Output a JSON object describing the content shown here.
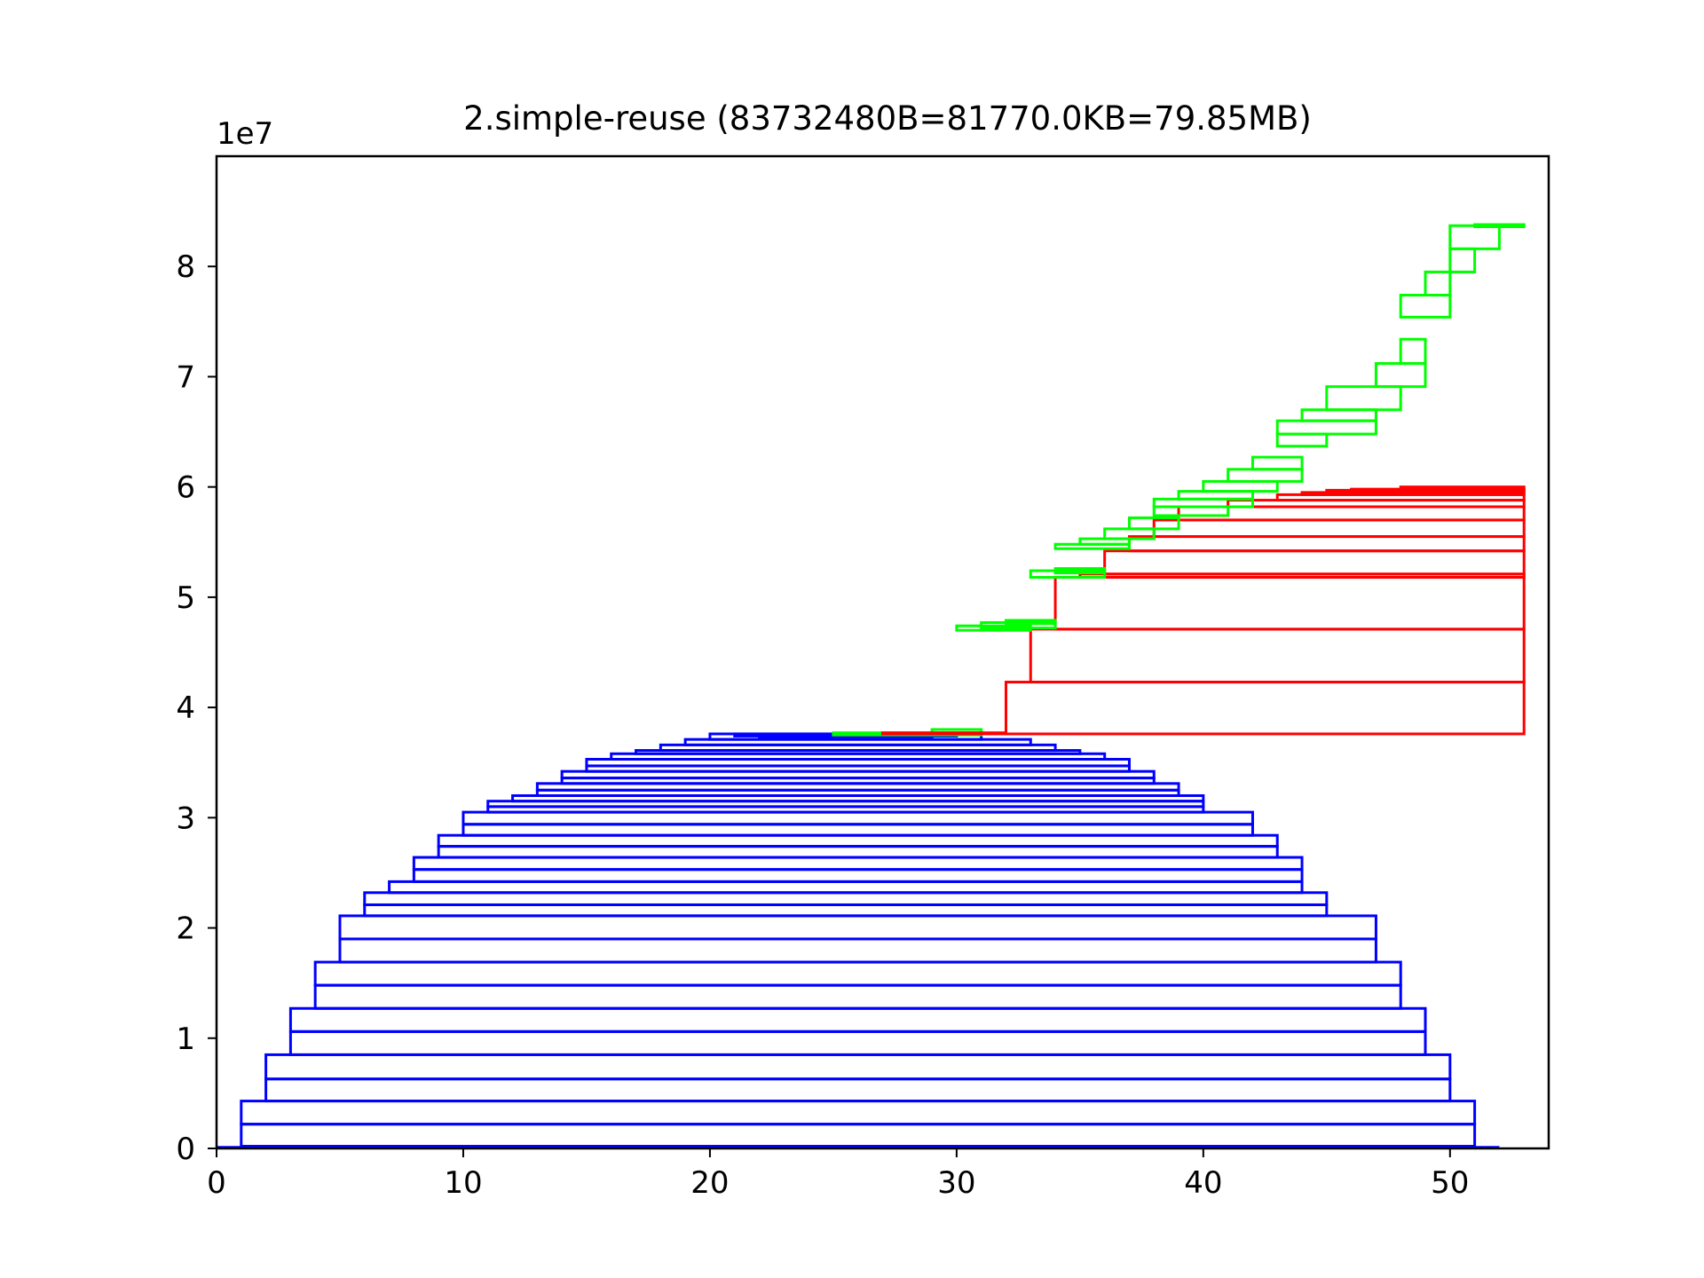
{
  "chart_data": {
    "type": "bar",
    "title": "2.simple-reuse (83732480B=81770.0KB=79.85MB)",
    "y_offset_label": "1e7",
    "xlabel": "",
    "ylabel": "",
    "xlim": [
      0,
      54
    ],
    "ylim": [
      0,
      9
    ],
    "x_ticks": [
      0,
      10,
      20,
      30,
      40,
      50
    ],
    "x_tick_labels": [
      "0",
      "10",
      "20",
      "30",
      "40",
      "50"
    ],
    "y_ticks": [
      0,
      1,
      2,
      3,
      4,
      5,
      6,
      7,
      8
    ],
    "y_tick_labels": [
      "0",
      "1",
      "2",
      "3",
      "4",
      "5",
      "6",
      "7",
      "8"
    ],
    "grid": false,
    "legend": "none",
    "colors": {
      "blue": "#0000ff",
      "red": "#ff0000",
      "green": "#00ff00"
    },
    "blocks": [
      {
        "series": "blue",
        "start": 1,
        "end": 51,
        "bottom": 0.22,
        "top": 0.43
      },
      {
        "series": "blue",
        "start": 1,
        "end": 51,
        "bottom": 0.02,
        "top": 0.22
      },
      {
        "series": "blue",
        "start": 2,
        "end": 50,
        "bottom": 0.63,
        "top": 0.85
      },
      {
        "series": "blue",
        "start": 2,
        "end": 50,
        "bottom": 0.43,
        "top": 0.63
      },
      {
        "series": "blue",
        "start": 3,
        "end": 49,
        "bottom": 1.06,
        "top": 1.27
      },
      {
        "series": "blue",
        "start": 3,
        "end": 49,
        "bottom": 0.85,
        "top": 1.06
      },
      {
        "series": "blue",
        "start": 4,
        "end": 48,
        "bottom": 1.48,
        "top": 1.69
      },
      {
        "series": "blue",
        "start": 4,
        "end": 48,
        "bottom": 1.27,
        "top": 1.48
      },
      {
        "series": "blue",
        "start": 5,
        "end": 47,
        "bottom": 1.9,
        "top": 2.11
      },
      {
        "series": "blue",
        "start": 5,
        "end": 47,
        "bottom": 1.69,
        "top": 1.9
      },
      {
        "series": "blue",
        "start": 6,
        "end": 45,
        "bottom": 2.21,
        "top": 2.32
      },
      {
        "series": "blue",
        "start": 6,
        "end": 45,
        "bottom": 2.11,
        "top": 2.21
      },
      {
        "series": "blue",
        "start": 7,
        "end": 44,
        "bottom": 2.32,
        "top": 2.42
      },
      {
        "series": "blue",
        "start": 8,
        "end": 44,
        "bottom": 2.53,
        "top": 2.64
      },
      {
        "series": "blue",
        "start": 8,
        "end": 44,
        "bottom": 2.42,
        "top": 2.53
      },
      {
        "series": "blue",
        "start": 9,
        "end": 43,
        "bottom": 2.74,
        "top": 2.84
      },
      {
        "series": "blue",
        "start": 9,
        "end": 43,
        "bottom": 2.64,
        "top": 2.74
      },
      {
        "series": "blue",
        "start": 10,
        "end": 42,
        "bottom": 2.94,
        "top": 3.05
      },
      {
        "series": "blue",
        "start": 10,
        "end": 42,
        "bottom": 2.84,
        "top": 2.94
      },
      {
        "series": "blue",
        "start": 11,
        "end": 40,
        "bottom": 3.1,
        "top": 3.15
      },
      {
        "series": "blue",
        "start": 11,
        "end": 40,
        "bottom": 3.05,
        "top": 3.1
      },
      {
        "series": "blue",
        "start": 12,
        "end": 40,
        "bottom": 3.15,
        "top": 3.2
      },
      {
        "series": "blue",
        "start": 13,
        "end": 39,
        "bottom": 3.25,
        "top": 3.31
      },
      {
        "series": "blue",
        "start": 13,
        "end": 39,
        "bottom": 3.2,
        "top": 3.25
      },
      {
        "series": "blue",
        "start": 14,
        "end": 38,
        "bottom": 3.36,
        "top": 3.42
      },
      {
        "series": "blue",
        "start": 14,
        "end": 38,
        "bottom": 3.31,
        "top": 3.36
      },
      {
        "series": "blue",
        "start": 15,
        "end": 37,
        "bottom": 3.47,
        "top": 3.53
      },
      {
        "series": "blue",
        "start": 15,
        "end": 37,
        "bottom": 3.42,
        "top": 3.47
      },
      {
        "series": "blue",
        "start": 16,
        "end": 36,
        "bottom": 3.53,
        "top": 3.58
      },
      {
        "series": "blue",
        "start": 17,
        "end": 35,
        "bottom": 3.58,
        "top": 3.61
      },
      {
        "series": "blue",
        "start": 18,
        "end": 34,
        "bottom": 3.61,
        "top": 3.66
      },
      {
        "series": "blue",
        "start": 19,
        "end": 33,
        "bottom": 3.66,
        "top": 3.71
      },
      {
        "series": "blue",
        "start": 20,
        "end": 31,
        "bottom": 3.71,
        "top": 3.76
      },
      {
        "series": "blue",
        "start": 21,
        "end": 30,
        "bottom": 3.74,
        "top": 3.76
      },
      {
        "series": "blue",
        "start": 22,
        "end": 29,
        "bottom": 3.72,
        "top": 3.75
      },
      {
        "series": "green",
        "start": 25,
        "end": 31,
        "bottom": 3.75,
        "top": 3.77
      },
      {
        "series": "green",
        "start": 29,
        "end": 31,
        "bottom": 3.77,
        "top": 3.8
      },
      {
        "series": "red",
        "start": 27,
        "end": 32,
        "bottom": 3.76,
        "top": 3.77
      },
      {
        "series": "red",
        "start": 32,
        "end": 53,
        "bottom": 3.76,
        "top": 4.23
      },
      {
        "series": "red",
        "start": 33,
        "end": 53,
        "bottom": 4.23,
        "top": 4.71
      },
      {
        "series": "red",
        "start": 34,
        "end": 53,
        "bottom": 4.71,
        "top": 5.18
      },
      {
        "series": "red",
        "start": 35,
        "end": 53,
        "bottom": 5.18,
        "top": 5.21
      },
      {
        "series": "red",
        "start": 36,
        "end": 53,
        "bottom": 5.21,
        "top": 5.42
      },
      {
        "series": "red",
        "start": 37,
        "end": 53,
        "bottom": 5.42,
        "top": 5.55
      },
      {
        "series": "red",
        "start": 38,
        "end": 53,
        "bottom": 5.55,
        "top": 5.7
      },
      {
        "series": "red",
        "start": 39,
        "end": 53,
        "bottom": 5.7,
        "top": 5.82
      },
      {
        "series": "red",
        "start": 41,
        "end": 53,
        "bottom": 5.82,
        "top": 5.88
      },
      {
        "series": "red",
        "start": 43,
        "end": 53,
        "bottom": 5.88,
        "top": 5.93
      },
      {
        "series": "red",
        "start": 44,
        "end": 53,
        "bottom": 5.93,
        "top": 5.95
      },
      {
        "series": "red",
        "start": 45,
        "end": 53,
        "bottom": 5.95,
        "top": 5.97
      },
      {
        "series": "red",
        "start": 46,
        "end": 53,
        "bottom": 5.97,
        "top": 5.98
      },
      {
        "series": "red",
        "start": 48,
        "end": 53,
        "bottom": 5.98,
        "top": 6.0
      },
      {
        "series": "green",
        "start": 30,
        "end": 33,
        "bottom": 4.7,
        "top": 4.74
      },
      {
        "series": "green",
        "start": 31,
        "end": 34,
        "bottom": 4.72,
        "top": 4.77
      },
      {
        "series": "green",
        "start": 32,
        "end": 34,
        "bottom": 4.76,
        "top": 4.79
      },
      {
        "series": "green",
        "start": 33,
        "end": 36,
        "bottom": 5.18,
        "top": 5.24
      },
      {
        "series": "green",
        "start": 34,
        "end": 36,
        "bottom": 5.22,
        "top": 5.26
      },
      {
        "series": "green",
        "start": 34,
        "end": 37,
        "bottom": 5.44,
        "top": 5.48
      },
      {
        "series": "green",
        "start": 35,
        "end": 37,
        "bottom": 5.48,
        "top": 5.53
      },
      {
        "series": "green",
        "start": 36,
        "end": 38,
        "bottom": 5.53,
        "top": 5.62
      },
      {
        "series": "green",
        "start": 37,
        "end": 39,
        "bottom": 5.62,
        "top": 5.72
      },
      {
        "series": "green",
        "start": 38,
        "end": 41,
        "bottom": 5.74,
        "top": 5.82
      },
      {
        "series": "green",
        "start": 38,
        "end": 42,
        "bottom": 5.82,
        "top": 5.89
      },
      {
        "series": "green",
        "start": 39,
        "end": 42,
        "bottom": 5.89,
        "top": 5.96
      },
      {
        "series": "green",
        "start": 40,
        "end": 43,
        "bottom": 5.96,
        "top": 6.05
      },
      {
        "series": "green",
        "start": 41,
        "end": 44,
        "bottom": 6.05,
        "top": 6.16
      },
      {
        "series": "green",
        "start": 42,
        "end": 44,
        "bottom": 6.16,
        "top": 6.27
      },
      {
        "series": "green",
        "start": 43,
        "end": 45,
        "bottom": 6.37,
        "top": 6.48
      },
      {
        "series": "green",
        "start": 43,
        "end": 47,
        "bottom": 6.48,
        "top": 6.6
      },
      {
        "series": "green",
        "start": 44,
        "end": 47,
        "bottom": 6.6,
        "top": 6.7
      },
      {
        "series": "green",
        "start": 45,
        "end": 48,
        "bottom": 6.7,
        "top": 6.91
      },
      {
        "series": "green",
        "start": 47,
        "end": 49,
        "bottom": 6.91,
        "top": 7.12
      },
      {
        "series": "green",
        "start": 48,
        "end": 49,
        "bottom": 7.12,
        "top": 7.34
      },
      {
        "series": "green",
        "start": 48,
        "end": 50,
        "bottom": 7.54,
        "top": 7.74
      },
      {
        "series": "green",
        "start": 49,
        "end": 50,
        "bottom": 7.74,
        "top": 7.95
      },
      {
        "series": "green",
        "start": 50,
        "end": 51,
        "bottom": 7.95,
        "top": 8.16
      },
      {
        "series": "green",
        "start": 50,
        "end": 52,
        "bottom": 8.16,
        "top": 8.37
      },
      {
        "series": "green",
        "start": 51,
        "end": 53,
        "bottom": 8.36,
        "top": 8.38
      }
    ],
    "baseline": {
      "series": "blue",
      "start": 0,
      "end": 52,
      "value": 0.01
    }
  }
}
